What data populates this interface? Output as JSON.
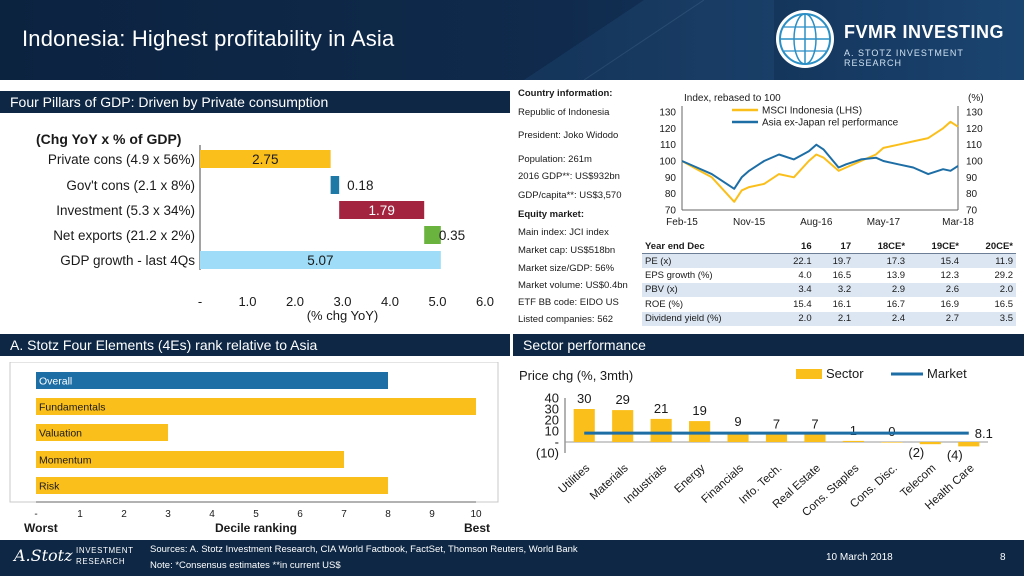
{
  "header": {
    "title": "Indonesia: Highest profitability in Asia",
    "logo_name": "FVMR INVESTING",
    "logo_sub": "A. STOTZ INVESTMENT RESEARCH"
  },
  "sections": {
    "gdp": "Four Pillars of GDP: Driven by Private consumption",
    "elements": "A. Stotz Four Elements (4Es) rank relative to Asia",
    "sector": "Sector performance"
  },
  "chart_data": [
    {
      "id": "gdp",
      "type": "bar",
      "orientation": "horizontal",
      "title": "(Chg YoY x % of GDP)",
      "xlabel": "(% chg YoY)",
      "xlim": [
        0,
        6
      ],
      "ticks": [
        "-",
        "1.0",
        "2.0",
        "3.0",
        "4.0",
        "5.0",
        "6.0"
      ],
      "categories": [
        "Private cons (4.9 x 56%)",
        "Gov't cons (2.1 x 8%)",
        "Investment (5.3 x 34%)",
        "Net exports (21.2 x 2%)",
        "GDP growth - last 4Qs"
      ],
      "starts": [
        0,
        2.75,
        2.93,
        4.72,
        0
      ],
      "values": [
        2.75,
        0.18,
        1.79,
        0.35,
        5.07
      ],
      "labels": [
        "2.75",
        "0.18",
        "1.79",
        "0.35",
        "5.07"
      ],
      "colors": [
        "#fbbf1c",
        "#1e79a6",
        "#a3243f",
        "#6bb33f",
        "#9fdcf7"
      ]
    },
    {
      "id": "index",
      "type": "line",
      "ylabel_left": "Index, rebased to 100",
      "ylabel_right": "(%)",
      "ylim_left": [
        70,
        130
      ],
      "ylim_right": [
        70,
        130
      ],
      "yticks_left": [
        "130",
        "120",
        "110",
        "100",
        "90",
        "80",
        "70"
      ],
      "yticks_right": [
        "130",
        "120",
        "110",
        "100",
        "90",
        "80",
        "70"
      ],
      "xticks": [
        "Feb-15",
        "Nov-15",
        "Aug-16",
        "May-17",
        "Mar-18"
      ],
      "series": [
        {
          "name": "MSCI Indonesia (LHS)",
          "color": "#fbbf1c",
          "x": [
            "Feb-15",
            "Apr-15",
            "Jun-15",
            "Aug-15",
            "Sep-15",
            "Oct-15",
            "Nov-15",
            "Jan-16",
            "Mar-16",
            "May-16",
            "Jul-16",
            "Aug-16",
            "Sep-16",
            "Nov-16",
            "Dec-16",
            "Feb-17",
            "Apr-17",
            "May-17",
            "Jul-17",
            "Sep-17",
            "Nov-17",
            "Jan-18",
            "Feb-18",
            "Mar-18"
          ],
          "y": [
            100,
            95,
            90,
            80,
            75,
            82,
            84,
            86,
            92,
            90,
            100,
            104,
            102,
            94,
            96,
            100,
            104,
            108,
            110,
            112,
            114,
            120,
            124,
            121
          ]
        },
        {
          "name": "Asia ex-Japan rel performance",
          "color": "#1e6ea6",
          "x": [
            "Feb-15",
            "Apr-15",
            "Jun-15",
            "Aug-15",
            "Sep-15",
            "Oct-15",
            "Nov-15",
            "Jan-16",
            "Mar-16",
            "May-16",
            "Jul-16",
            "Aug-16",
            "Sep-16",
            "Nov-16",
            "Dec-16",
            "Feb-17",
            "Apr-17",
            "May-17",
            "Jul-17",
            "Sep-17",
            "Nov-17",
            "Jan-18",
            "Feb-18",
            "Mar-18"
          ],
          "y": [
            100,
            96,
            92,
            86,
            83,
            90,
            94,
            100,
            104,
            101,
            106,
            110,
            107,
            96,
            98,
            101,
            102,
            100,
            98,
            96,
            92,
            95,
            94,
            97
          ]
        }
      ]
    },
    {
      "id": "elements",
      "type": "bar",
      "orientation": "horizontal",
      "xlabel": "Decile ranking",
      "xlabel_left": "Worst",
      "xlabel_right": "Best",
      "xlim": [
        0,
        10
      ],
      "ticks": [
        "-",
        "1",
        "2",
        "3",
        "4",
        "5",
        "6",
        "7",
        "8",
        "9",
        "10"
      ],
      "categories": [
        "Overall",
        "Fundamentals",
        "Valuation",
        "Momentum",
        "Risk"
      ],
      "values": [
        8,
        10,
        3,
        7,
        8
      ],
      "colors": [
        "#1e6ea6",
        "#fbbf1c",
        "#fbbf1c",
        "#fbbf1c",
        "#fbbf1c"
      ]
    },
    {
      "id": "sector",
      "type": "bar",
      "title": "Price chg (%, 3mth)",
      "ylim": [
        -10,
        40
      ],
      "yticks": [
        "40",
        "30",
        "20",
        "10",
        "-",
        "(10)"
      ],
      "categories": [
        "Utilities",
        "Materials",
        "Industrials",
        "Energy",
        "Financials",
        "Info. Tech.",
        "Real Estate",
        "Cons. Staples",
        "Cons. Disc.",
        "Telecom",
        "Health Care"
      ],
      "series": [
        {
          "name": "Sector",
          "color": "#fbbf1c",
          "values": [
            30,
            29,
            21,
            19,
            9,
            7,
            7,
            1,
            0,
            -2,
            -4
          ],
          "labels": [
            "30",
            "29",
            "21",
            "19",
            "9",
            "7",
            "7",
            "1",
            "0",
            "(2)",
            "(4)"
          ]
        },
        {
          "name": "Market",
          "color": "#1e6ea6",
          "value": 8.1,
          "label": "8.1"
        }
      ]
    }
  ],
  "country": {
    "heading": "Country information:",
    "lines": [
      "Republic of Indonesia",
      "President: Joko Widodo",
      "Population: 261m",
      "2016 GDP**: US$932bn",
      "GDP/capita**: US$3,570"
    ],
    "equity_heading": "Equity market:",
    "equity_lines": [
      "Main index: JCI index",
      "Market cap: US$518bn",
      "Market size/GDP: 56%",
      "Market volume: US$0.4bn",
      "ETF BB code: EIDO US",
      "Listed companies: 562"
    ]
  },
  "table": {
    "headers": [
      "Year end Dec",
      "16",
      "17",
      "18CE*",
      "19CE*",
      "20CE*"
    ],
    "rows": [
      [
        "PE (x)",
        "22.1",
        "19.7",
        "17.3",
        "15.4",
        "11.9"
      ],
      [
        "EPS growth (%)",
        "4.0",
        "16.5",
        "13.9",
        "12.3",
        "29.2"
      ],
      [
        "PBV (x)",
        "3.4",
        "3.2",
        "2.9",
        "2.6",
        "2.0"
      ],
      [
        "ROE (%)",
        "15.4",
        "16.1",
        "16.7",
        "16.9",
        "16.5"
      ],
      [
        "Dividend yield (%)",
        "2.0",
        "2.1",
        "2.4",
        "2.7",
        "3.5"
      ]
    ]
  },
  "footer": {
    "logo": "A.Stotz",
    "logo_sub_1": "INVESTMENT",
    "logo_sub_2": "RESEARCH",
    "sources": "Sources: A. Stotz Investment Research, CIA World Factbook, FactSet, Thomson Reuters, World Bank",
    "note": "Note: *Consensus estimates **in current US$",
    "date": "10 March 2018",
    "page": "8"
  }
}
